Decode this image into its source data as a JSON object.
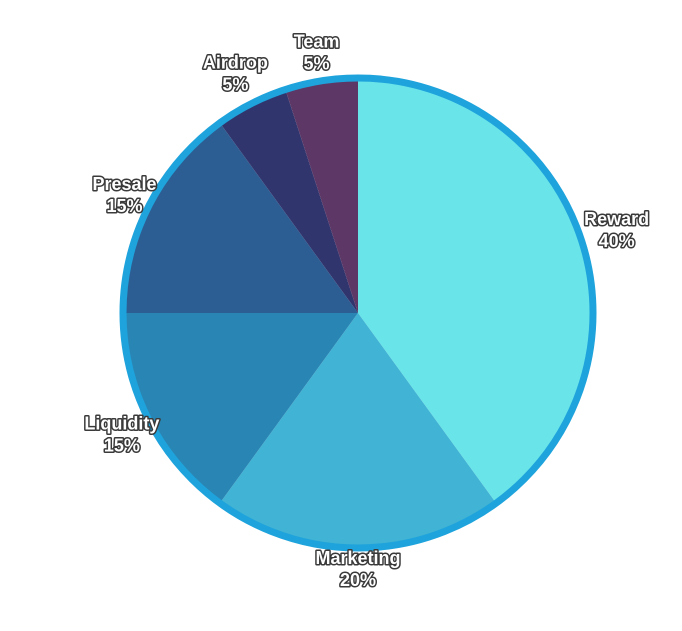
{
  "chart_data": {
    "type": "pie",
    "title": "",
    "start_angle_deg": 0,
    "direction": "clockwise",
    "border_color": "#1ea3dc",
    "slices": [
      {
        "label": "Reward",
        "value": 40,
        "value_label": "40%",
        "color": "#69e5e9"
      },
      {
        "label": "Marketing",
        "value": 20,
        "value_label": "20%",
        "color": "#41b3d4"
      },
      {
        "label": "Liquidity",
        "value": 15,
        "value_label": "15%",
        "color": "#2986b4"
      },
      {
        "label": "Presale",
        "value": 15,
        "value_label": "15%",
        "color": "#2c5e94"
      },
      {
        "label": "Airdrop",
        "value": 5,
        "value_label": "5%",
        "color": "#31356e"
      },
      {
        "label": "Team",
        "value": 5,
        "value_label": "5%",
        "color": "#5d3866"
      }
    ]
  }
}
